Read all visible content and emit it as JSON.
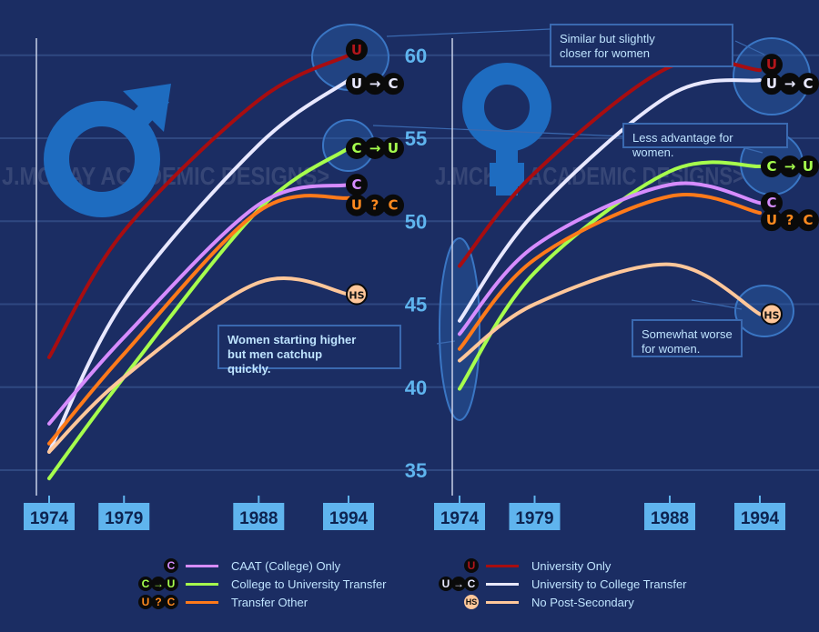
{
  "watermark": "J.MCKAY ACADEMIC DESIGNS>",
  "colors": {
    "background": "#1b2d63",
    "axis_label": "#5fb4ee",
    "year_box": "#5fb4ee",
    "gender_symbol": "#1e6cc0",
    "annotation_border": "#3a69b0",
    "annotation_text": "#bfe4ff"
  },
  "annotations": {
    "left": "Women starting higher but men catchup quickly.",
    "right_top": "Similar but slightly closer for women",
    "right_mid": "Less advantage for women.",
    "right_low": "Somewhat worse for women."
  },
  "series_meta": [
    {
      "key": "univ",
      "name": "University Only",
      "color": "#a80d10",
      "badge": [
        "U"
      ],
      "badge_color": "#b3161b"
    },
    {
      "key": "u2c",
      "name": "University to College Transfer",
      "color": "#e8e8ff",
      "badge": [
        "U",
        "→",
        "C"
      ],
      "badge_color": "#e8e8ff"
    },
    {
      "key": "c2u",
      "name": "College to University Transfer",
      "color": "#a6ff4d",
      "badge": [
        "C",
        "→",
        "U"
      ],
      "badge_color": "#a6ff4d"
    },
    {
      "key": "caat",
      "name": "CAAT (College) Only",
      "color": "#d68cff",
      "badge": [
        "C"
      ],
      "badge_color": "#d68cff"
    },
    {
      "key": "other",
      "name": "Transfer Other",
      "color": "#ff7a1a",
      "badge": [
        "U",
        "?",
        "C"
      ],
      "badge_color": "#ff8a1f"
    },
    {
      "key": "hs",
      "name": "No Post-Secondary",
      "color": "#ffc79a",
      "badge": [
        "HS"
      ],
      "badge_color": "#111111"
    }
  ],
  "legend_left": [
    3,
    2,
    4
  ],
  "legend_right": [
    0,
    1,
    5
  ],
  "chart_data": [
    {
      "type": "line",
      "panel": "men",
      "gender_symbol": "male-icon",
      "x": [
        1974,
        1979,
        1988,
        1994
      ],
      "x_tick_labels": [
        "1974",
        "1979",
        "1988",
        "1994"
      ],
      "y_tick_labels": [
        "35",
        "40",
        "45",
        "50",
        "55",
        "60"
      ],
      "ylim": [
        35,
        60
      ],
      "grid": true,
      "series": [
        {
          "name": "University Only",
          "values": [
            41.8,
            49.4,
            57.3,
            60.0
          ]
        },
        {
          "name": "University to College Transfer",
          "values": [
            36.1,
            45.2,
            54.6,
            58.5
          ]
        },
        {
          "name": "College to University Transfer",
          "values": [
            34.5,
            40.6,
            50.7,
            54.4
          ]
        },
        {
          "name": "CAAT (College) Only",
          "values": [
            37.8,
            43.0,
            51.0,
            52.2
          ]
        },
        {
          "name": "Transfer Other",
          "values": [
            36.6,
            42.0,
            50.6,
            51.4
          ]
        },
        {
          "name": "No Post-Secondary",
          "values": [
            36.1,
            40.6,
            46.3,
            45.6
          ]
        }
      ]
    },
    {
      "type": "line",
      "panel": "women",
      "gender_symbol": "female-icon",
      "x": [
        1974,
        1979,
        1988,
        1994
      ],
      "x_tick_labels": [
        "1974",
        "1979",
        "1988",
        "1994"
      ],
      "ylim": [
        35,
        60
      ],
      "grid": true,
      "series": [
        {
          "name": "University Only",
          "values": [
            47.3,
            52.9,
            59.3,
            59.1
          ]
        },
        {
          "name": "University to College Transfer",
          "values": [
            44.0,
            50.5,
            57.6,
            58.5
          ]
        },
        {
          "name": "College to University Transfer",
          "values": [
            39.9,
            46.9,
            53.0,
            53.3
          ]
        },
        {
          "name": "CAAT (College) Only",
          "values": [
            43.2,
            48.5,
            52.2,
            51.1
          ]
        },
        {
          "name": "Transfer Other",
          "values": [
            42.3,
            47.7,
            51.5,
            50.5
          ]
        },
        {
          "name": "No Post-Secondary",
          "values": [
            41.6,
            45.0,
            47.4,
            44.4
          ]
        }
      ]
    }
  ]
}
